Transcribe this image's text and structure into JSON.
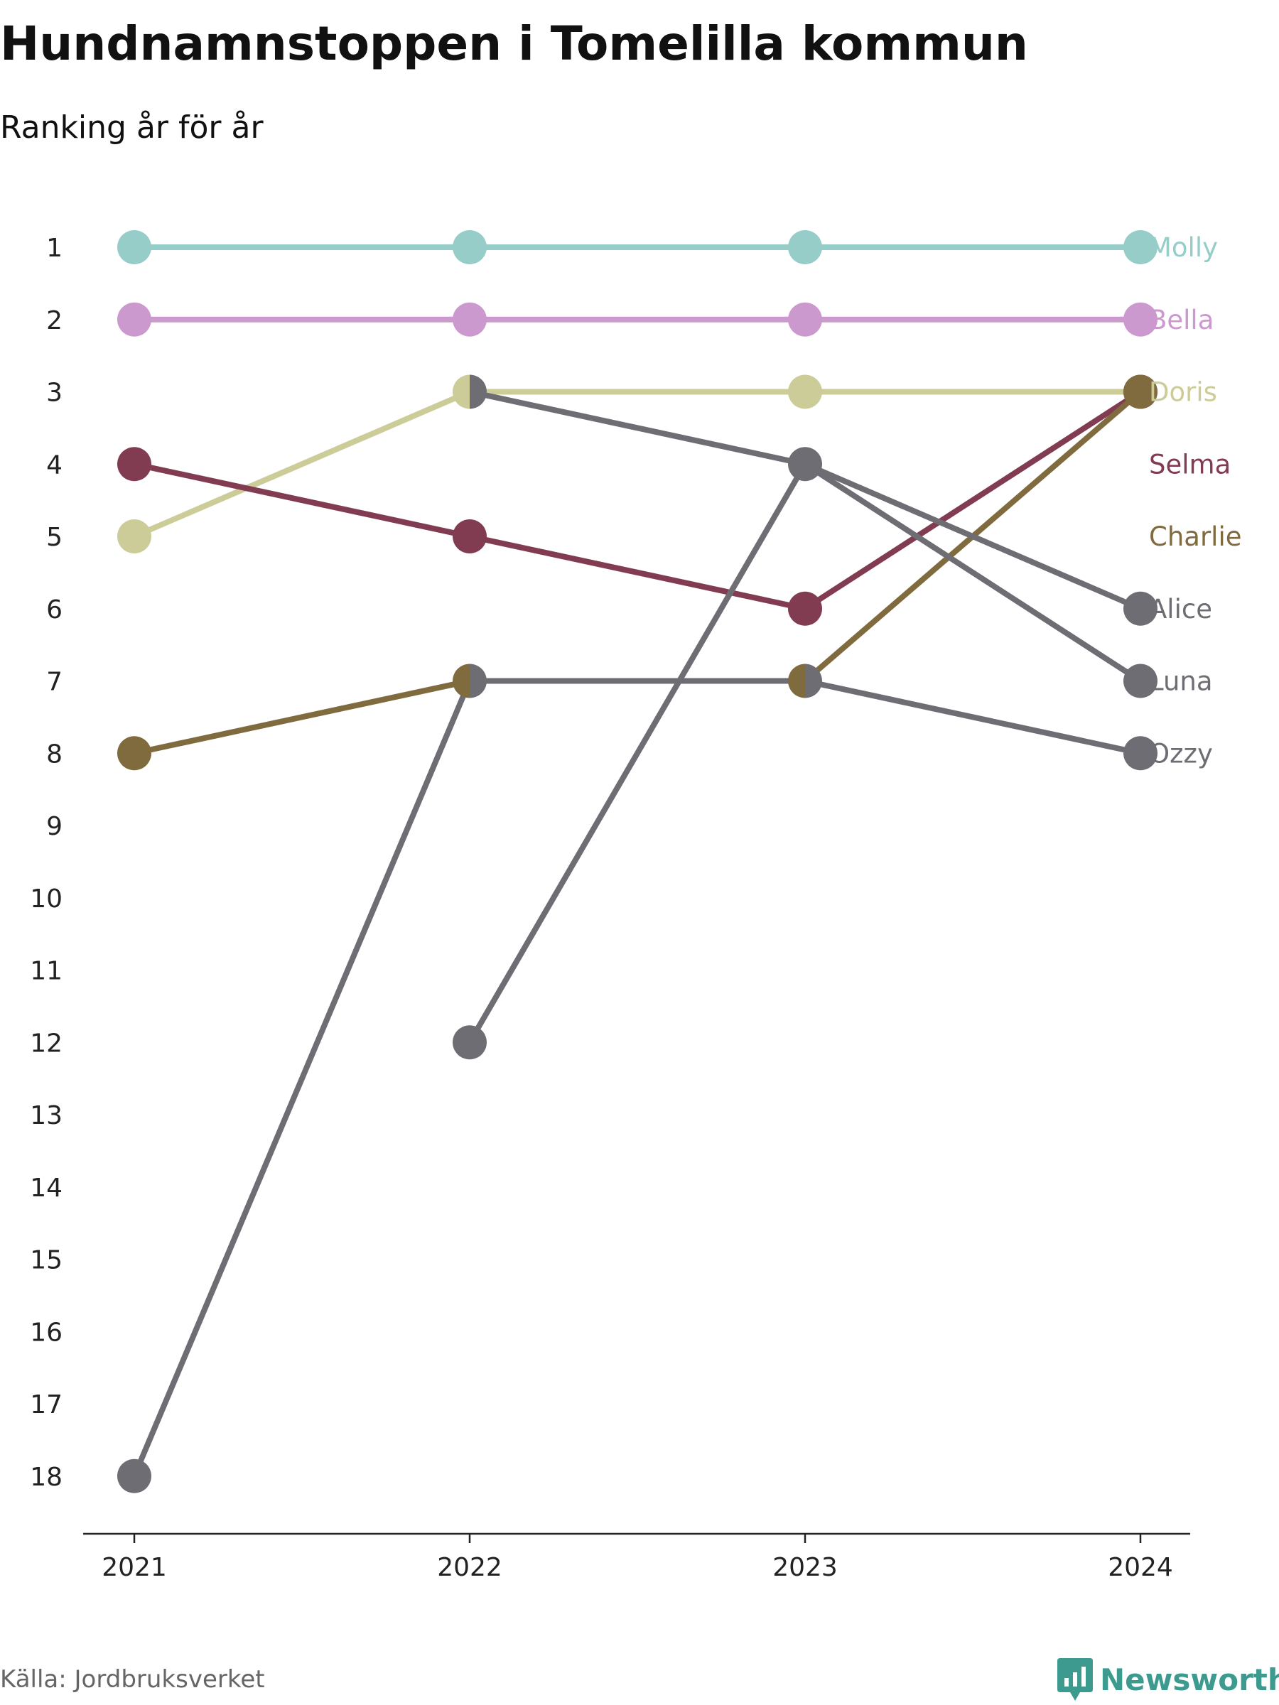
{
  "header": {
    "title": "Hundnamnstoppen i Tomelilla kommun",
    "subtitle": "Ranking år för år"
  },
  "footer": {
    "source": "Källa: Jordbruksverket",
    "brand": "Newsworthy",
    "brand_icon": "bar-chart-speech-bubble-icon",
    "brand_color": "#3d9a8f"
  },
  "chart_data": {
    "type": "line",
    "subtype": "bump",
    "title": "Hundnamnstoppen i Tomelilla kommun",
    "subtitle": "Ranking år för år",
    "xlabel": "",
    "ylabel": "",
    "x": [
      "2021",
      "2022",
      "2023",
      "2024"
    ],
    "y_ticks": [
      "1",
      "2",
      "3",
      "4",
      "5",
      "6",
      "7",
      "8",
      "9",
      "10",
      "11",
      "12",
      "13",
      "14",
      "15",
      "16",
      "17",
      "18"
    ],
    "ylim": [
      1,
      18
    ],
    "y_reversed": true,
    "grid": false,
    "legend": "direct labels at right end of lines",
    "series": [
      {
        "name": "Molly",
        "color": "#96cdc9",
        "ranks": [
          1,
          1,
          1,
          1
        ]
      },
      {
        "name": "Bella",
        "color": "#cc99cf",
        "ranks": [
          2,
          2,
          2,
          2
        ]
      },
      {
        "name": "Doris",
        "color": "#cccc99",
        "ranks": [
          5,
          3,
          3,
          3
        ]
      },
      {
        "name": "Selma",
        "color": "#823c52",
        "ranks": [
          4,
          5,
          6,
          3
        ]
      },
      {
        "name": "Charlie",
        "color": "#806b3f",
        "ranks": [
          8,
          7,
          7,
          3
        ]
      },
      {
        "name": "Alice",
        "color": "#6e6d74",
        "ranks": [
          null,
          3,
          4,
          6
        ]
      },
      {
        "name": "Luna",
        "color": "#6e6d74",
        "ranks": [
          null,
          12,
          4,
          7
        ]
      },
      {
        "name": "Ozzy",
        "color": "#6e6d74",
        "ranks": [
          18,
          7,
          7,
          8
        ]
      }
    ]
  }
}
